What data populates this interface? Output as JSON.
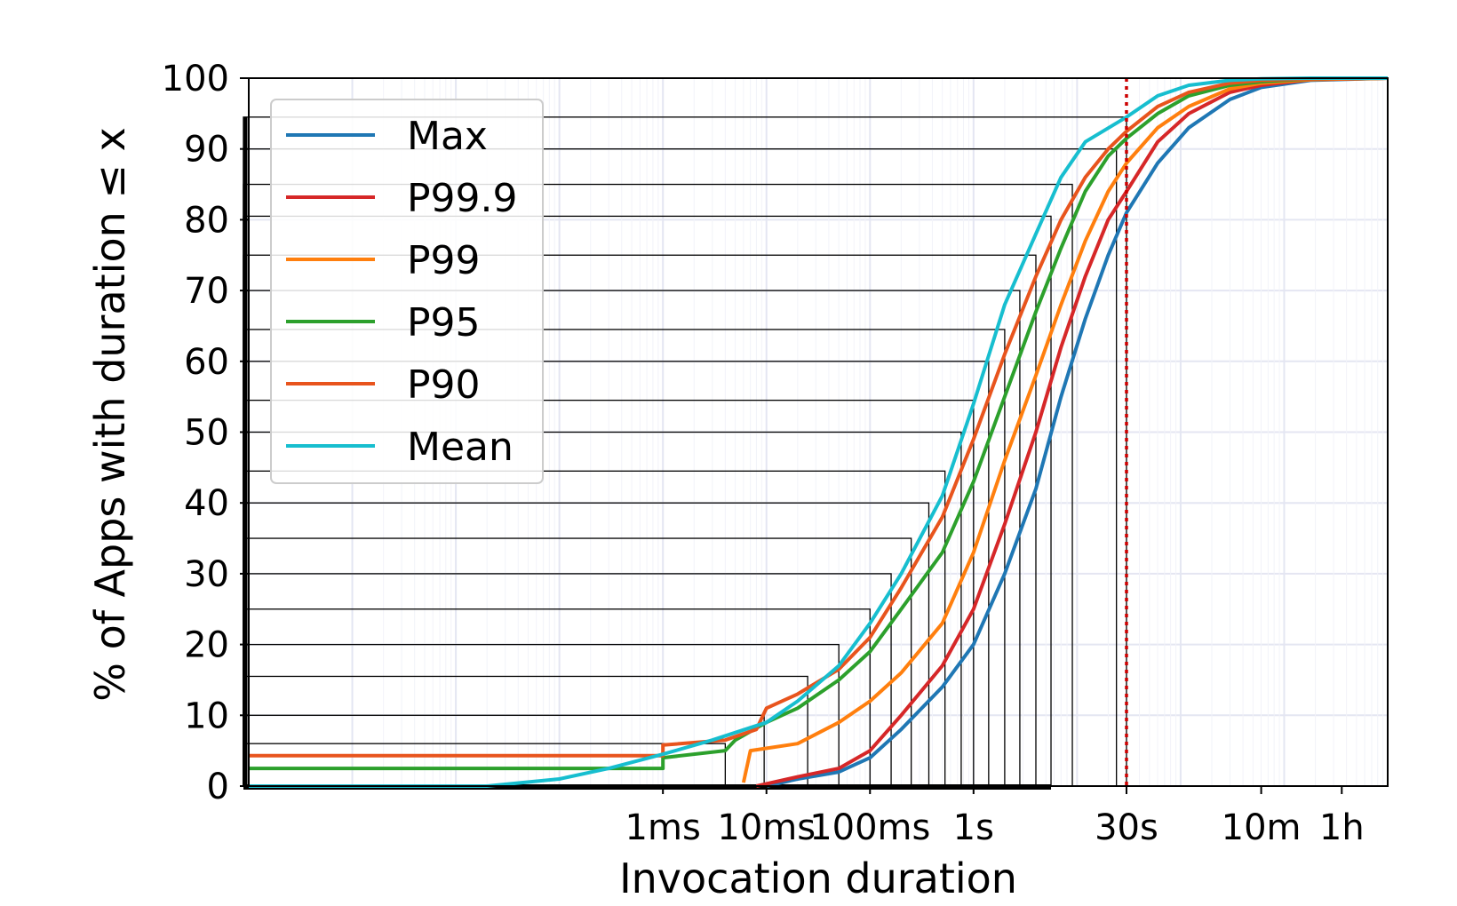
{
  "chart_data": {
    "type": "line",
    "xlabel": "Invocation duration",
    "ylabel": "% of Apps with duration ≤  x",
    "x_scale": "log",
    "x_unit": "seconds",
    "xlim": [
      1e-07,
      10000
    ],
    "ylim": [
      0,
      100
    ],
    "x_ticks": [
      {
        "value": 0.001,
        "label": "1ms"
      },
      {
        "value": 0.01,
        "label": "10ms"
      },
      {
        "value": 0.1,
        "label": "100ms"
      },
      {
        "value": 1,
        "label": "1s"
      },
      {
        "value": 30,
        "label": "30s"
      },
      {
        "value": 600,
        "label": "10m"
      },
      {
        "value": 3600,
        "label": "1h"
      }
    ],
    "y_ticks": [
      0,
      10,
      20,
      30,
      40,
      50,
      60,
      70,
      80,
      90,
      100
    ],
    "grid": true,
    "legend_position": "upper-left",
    "reference_line": {
      "x": 30,
      "style": "dotted",
      "color": "#cc0000"
    },
    "series": [
      {
        "name": "Max",
        "color": "#1f77b4",
        "points": [
          [
            0.01,
            0
          ],
          [
            0.02,
            1
          ],
          [
            0.05,
            2
          ],
          [
            0.1,
            4
          ],
          [
            0.2,
            8
          ],
          [
            0.5,
            14
          ],
          [
            1,
            20
          ],
          [
            2,
            30
          ],
          [
            4,
            42
          ],
          [
            7,
            55
          ],
          [
            12,
            66
          ],
          [
            20,
            75
          ],
          [
            30,
            81
          ],
          [
            60,
            88
          ],
          [
            120,
            93
          ],
          [
            300,
            97
          ],
          [
            600,
            98.7
          ],
          [
            1800,
            99.7
          ],
          [
            10000,
            100
          ]
        ]
      },
      {
        "name": "P99.9",
        "color": "#d62728",
        "points": [
          [
            0.008,
            0
          ],
          [
            0.02,
            1.3
          ],
          [
            0.05,
            2.5
          ],
          [
            0.1,
            5
          ],
          [
            0.2,
            10
          ],
          [
            0.5,
            17
          ],
          [
            1,
            25
          ],
          [
            2,
            37
          ],
          [
            4,
            50
          ],
          [
            7,
            62
          ],
          [
            12,
            72
          ],
          [
            20,
            80
          ],
          [
            30,
            84
          ],
          [
            60,
            91
          ],
          [
            120,
            95
          ],
          [
            300,
            98
          ],
          [
            600,
            99
          ],
          [
            1800,
            99.8
          ],
          [
            10000,
            100
          ]
        ]
      },
      {
        "name": "P99",
        "color": "#ff7f0e",
        "points": [
          [
            0.006,
            0.5
          ],
          [
            0.007,
            5
          ],
          [
            0.02,
            6
          ],
          [
            0.05,
            9
          ],
          [
            0.1,
            12
          ],
          [
            0.2,
            16
          ],
          [
            0.5,
            23
          ],
          [
            1,
            33
          ],
          [
            2,
            46
          ],
          [
            4,
            58
          ],
          [
            7,
            68
          ],
          [
            12,
            77
          ],
          [
            20,
            84
          ],
          [
            30,
            88
          ],
          [
            60,
            93
          ],
          [
            120,
            96
          ],
          [
            300,
            98.5
          ],
          [
            600,
            99.3
          ],
          [
            1800,
            99.8
          ],
          [
            10000,
            100
          ]
        ]
      },
      {
        "name": "P95",
        "color": "#2ca02c",
        "points": [
          [
            1e-07,
            2.5
          ],
          [
            0.001,
            2.5
          ],
          [
            0.001,
            4
          ],
          [
            0.004,
            5
          ],
          [
            0.005,
            6.5
          ],
          [
            0.01,
            9
          ],
          [
            0.02,
            11
          ],
          [
            0.05,
            15
          ],
          [
            0.1,
            19
          ],
          [
            0.2,
            25
          ],
          [
            0.5,
            33
          ],
          [
            1,
            43
          ],
          [
            2,
            55
          ],
          [
            4,
            67
          ],
          [
            7,
            76
          ],
          [
            12,
            84
          ],
          [
            20,
            89
          ],
          [
            30,
            91.5
          ],
          [
            60,
            95
          ],
          [
            120,
            97.5
          ],
          [
            300,
            99
          ],
          [
            600,
            99.5
          ],
          [
            1800,
            99.9
          ],
          [
            10000,
            100
          ]
        ]
      },
      {
        "name": "P90",
        "color": "#e8541d",
        "points": [
          [
            1e-07,
            4.3
          ],
          [
            0.001,
            4.3
          ],
          [
            0.001,
            5.8
          ],
          [
            0.004,
            6.5
          ],
          [
            0.008,
            8
          ],
          [
            0.01,
            11
          ],
          [
            0.02,
            13
          ],
          [
            0.05,
            16.5
          ],
          [
            0.1,
            21
          ],
          [
            0.2,
            28
          ],
          [
            0.5,
            38
          ],
          [
            1,
            49
          ],
          [
            2,
            61
          ],
          [
            4,
            72
          ],
          [
            7,
            80
          ],
          [
            12,
            86
          ],
          [
            20,
            90
          ],
          [
            30,
            92.5
          ],
          [
            60,
            96
          ],
          [
            120,
            98
          ],
          [
            300,
            99.3
          ],
          [
            600,
            99.7
          ],
          [
            1800,
            99.9
          ],
          [
            10000,
            100
          ]
        ]
      },
      {
        "name": "Mean",
        "color": "#17becf",
        "points": [
          [
            1e-07,
            0
          ],
          [
            2e-05,
            0
          ],
          [
            0.0001,
            1
          ],
          [
            0.0003,
            2.5
          ],
          [
            0.001,
            4.5
          ],
          [
            0.003,
            6.5
          ],
          [
            0.01,
            9
          ],
          [
            0.02,
            12
          ],
          [
            0.05,
            17
          ],
          [
            0.1,
            23
          ],
          [
            0.2,
            30
          ],
          [
            0.5,
            41
          ],
          [
            1,
            54
          ],
          [
            2,
            68
          ],
          [
            4,
            78
          ],
          [
            7,
            86
          ],
          [
            12,
            91
          ],
          [
            30,
            94.5
          ],
          [
            60,
            97.5
          ],
          [
            120,
            99
          ],
          [
            300,
            99.7
          ],
          [
            600,
            99.9
          ],
          [
            1800,
            100
          ],
          [
            10000,
            100
          ]
        ]
      }
    ]
  },
  "boxes": [
    {
      "x": 0.004,
      "y": 6
    },
    {
      "x": 0.0095,
      "y": 10
    },
    {
      "x": 0.025,
      "y": 15.5
    },
    {
      "x": 0.05,
      "y": 20
    },
    {
      "x": 0.1,
      "y": 25
    },
    {
      "x": 0.16,
      "y": 30
    },
    {
      "x": 0.25,
      "y": 35
    },
    {
      "x": 0.37,
      "y": 40
    },
    {
      "x": 0.53,
      "y": 44.5
    },
    {
      "x": 0.76,
      "y": 50
    },
    {
      "x": 1.0,
      "y": 54.5
    },
    {
      "x": 1.4,
      "y": 60
    },
    {
      "x": 2.0,
      "y": 64.5
    },
    {
      "x": 2.8,
      "y": 70
    },
    {
      "x": 4.0,
      "y": 75
    },
    {
      "x": 5.6,
      "y": 80.5
    },
    {
      "x": 9.0,
      "y": 85
    },
    {
      "x": 24.0,
      "y": 90
    },
    {
      "x": 30.0,
      "y": 94.5
    }
  ]
}
